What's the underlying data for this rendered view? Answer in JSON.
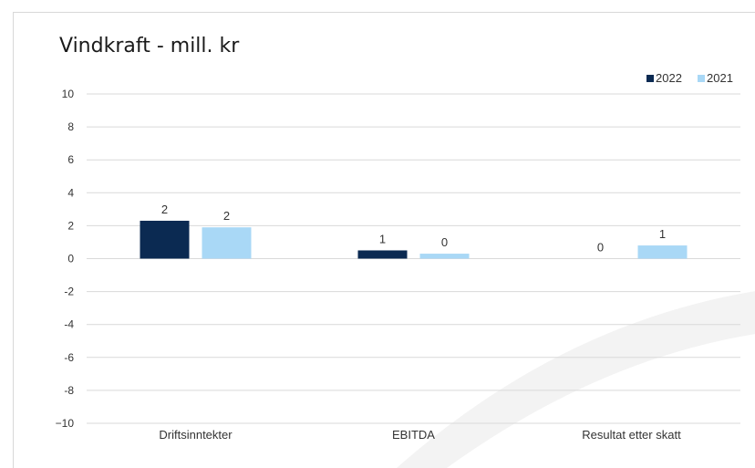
{
  "chart_data": {
    "type": "bar",
    "title": "Vindkraft - mill. kr",
    "categories": [
      "Driftsinntekter",
      "EBITDA",
      "Resultat etter skatt"
    ],
    "series": [
      {
        "name": "2022",
        "color": "#0b2a52",
        "values": [
          2.3,
          0.5,
          0.0
        ],
        "labels": [
          "2",
          "1",
          "0"
        ]
      },
      {
        "name": "2021",
        "color": "#a9d8f6",
        "values": [
          1.9,
          0.3,
          0.8
        ],
        "labels": [
          "2",
          "0",
          "1"
        ]
      }
    ],
    "ylim": [
      -10,
      10
    ],
    "yticks": [
      10,
      8,
      6,
      4,
      2,
      0,
      -2,
      -4,
      -6,
      -8,
      -10
    ],
    "ytick_labels": [
      "10",
      "8",
      "6",
      "4",
      "2",
      "0",
      "-2",
      "-4",
      "-6",
      "-8",
      "−10"
    ],
    "grid": true,
    "legend_position": "top-right",
    "xlabel": "",
    "ylabel": ""
  }
}
